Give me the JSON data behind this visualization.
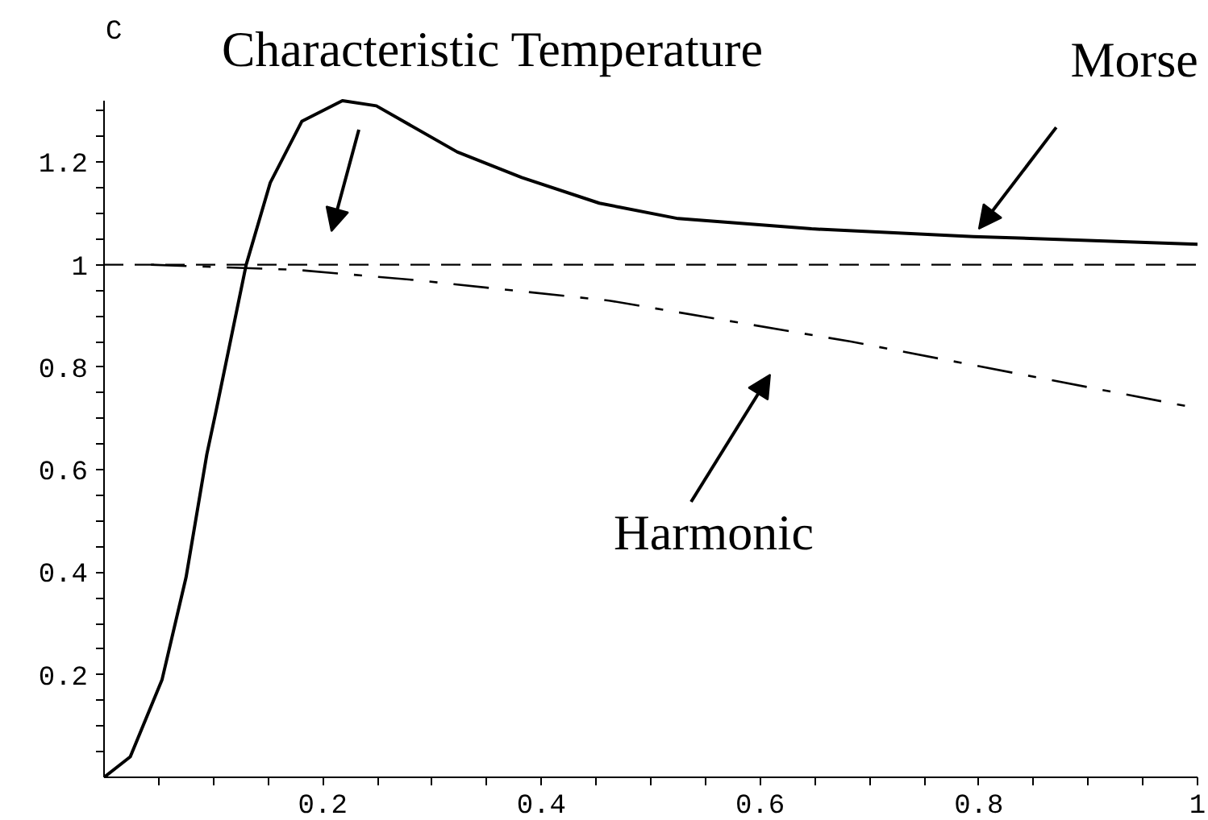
{
  "chart_data": {
    "type": "line",
    "ylabel": "C",
    "xlim": [
      0,
      1
    ],
    "ylim": [
      0,
      1.32
    ],
    "xticks": [
      {
        "value": 0.05,
        "label": null
      },
      {
        "value": 0.1,
        "label": null
      },
      {
        "value": 0.15,
        "label": null
      },
      0.2,
      {
        "value": 0.25,
        "label": null
      },
      {
        "value": 0.3,
        "label": null
      },
      {
        "value": 0.35,
        "label": null
      },
      0.4,
      {
        "value": 0.45,
        "label": null
      },
      {
        "value": 0.5,
        "label": null
      },
      {
        "value": 0.55,
        "label": null
      },
      0.6,
      {
        "value": 0.65,
        "label": null
      },
      {
        "value": 0.7,
        "label": null
      },
      {
        "value": 0.75,
        "label": null
      },
      0.8,
      {
        "value": 0.85,
        "label": null
      },
      {
        "value": 0.9,
        "label": null
      },
      {
        "value": 0.95,
        "label": null
      },
      1
    ],
    "yticks": [
      {
        "value": 0.05,
        "label": null
      },
      {
        "value": 0.1,
        "label": null
      },
      {
        "value": 0.15,
        "label": null
      },
      0.2,
      {
        "value": 0.25,
        "label": null
      },
      {
        "value": 0.3,
        "label": null
      },
      {
        "value": 0.35,
        "label": null
      },
      0.4,
      {
        "value": 0.45,
        "label": null
      },
      {
        "value": 0.5,
        "label": null
      },
      {
        "value": 0.55,
        "label": null
      },
      0.6,
      {
        "value": 0.65,
        "label": null
      },
      {
        "value": 0.7,
        "label": null
      },
      {
        "value": 0.75,
        "label": null
      },
      0.8,
      {
        "value": 0.85,
        "label": null
      },
      {
        "value": 0.9,
        "label": null
      },
      {
        "value": 0.95,
        "label": null
      },
      1,
      {
        "value": 1.05,
        "label": null
      },
      {
        "value": 1.1,
        "label": null
      },
      {
        "value": 1.15,
        "label": null
      },
      1.2,
      {
        "value": 1.25,
        "label": null
      },
      {
        "value": 1.3,
        "label": null
      }
    ],
    "grid": false,
    "series": [
      {
        "color": "#000000",
        "line_style": "solid",
        "x": [
          0,
          0.024,
          0.053,
          0.075,
          0.094,
          0.102,
          0.13,
          0.152,
          0.181,
          0.218,
          0.249,
          0.323,
          0.382,
          0.453,
          0.525,
          0.647,
          0.795,
          1.0
        ],
        "values": [
          0,
          0.04,
          0.19,
          0.39,
          0.63,
          0.71,
          1.0,
          1.16,
          1.28,
          1.32,
          1.31,
          1.22,
          1.17,
          1.12,
          1.09,
          1.07,
          1.055,
          1.04
        ]
      },
      {
        "color": "#000000",
        "line_style": "dashed",
        "x": [
          0.043,
          0.176,
          0.285,
          0.462,
          0.683,
          1.0
        ],
        "values": [
          1.0,
          0.99,
          0.97,
          0.93,
          0.85,
          0.72
        ]
      }
    ],
    "ref_lines": [
      {
        "axis": "y",
        "value": 1,
        "color": "#000000",
        "line_style": "dashed"
      }
    ],
    "annotations": [
      "Characteristic Temperature",
      {
        "text": "Morse",
        "x": 0.8,
        "y": 1.07
      },
      "Harmonic"
    ]
  }
}
